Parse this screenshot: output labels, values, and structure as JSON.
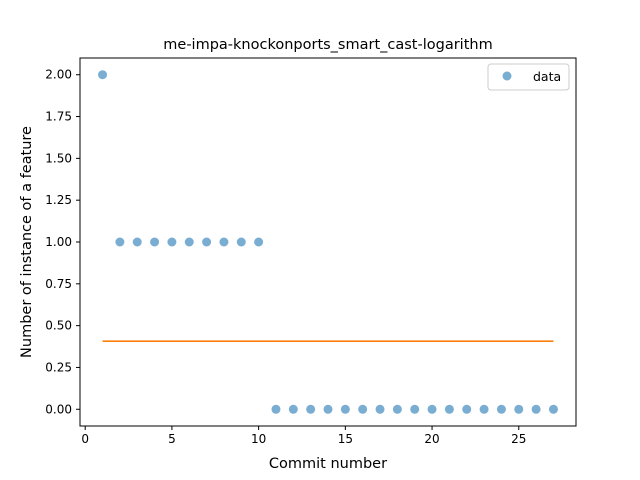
{
  "chart_data": {
    "type": "scatter",
    "title": "me-impa-knockonports_smart_cast-logarithm",
    "xlabel": "Commit number",
    "ylabel": "Number of instance of a feature",
    "xlim": [
      -0.3,
      28.3
    ],
    "ylim": [
      -0.1,
      2.1
    ],
    "xticks": [
      0,
      5,
      10,
      15,
      20,
      25
    ],
    "yticks": [
      0.0,
      0.25,
      0.5,
      0.75,
      1.0,
      1.25,
      1.5,
      1.75,
      2.0
    ],
    "xtick_labels": [
      "0",
      "5",
      "10",
      "15",
      "20",
      "25"
    ],
    "ytick_labels": [
      "0.00",
      "0.25",
      "0.50",
      "0.75",
      "1.00",
      "1.25",
      "1.50",
      "1.75",
      "2.00"
    ],
    "legend_position": "top-right",
    "grid": false,
    "series": [
      {
        "name": "data",
        "kind": "scatter",
        "color": "#1f77b4",
        "x": [
          1,
          2,
          3,
          4,
          5,
          6,
          7,
          8,
          9,
          10,
          11,
          12,
          13,
          14,
          15,
          16,
          17,
          18,
          19,
          20,
          21,
          22,
          23,
          24,
          25,
          26,
          27
        ],
        "y": [
          2,
          1,
          1,
          1,
          1,
          1,
          1,
          1,
          1,
          1,
          0,
          0,
          0,
          0,
          0,
          0,
          0,
          0,
          0,
          0,
          0,
          0,
          0,
          0,
          0,
          0,
          0
        ]
      },
      {
        "kind": "line",
        "color": "#ff7f0e",
        "x": [
          1,
          27
        ],
        "y": [
          0.407,
          0.407
        ]
      }
    ]
  }
}
